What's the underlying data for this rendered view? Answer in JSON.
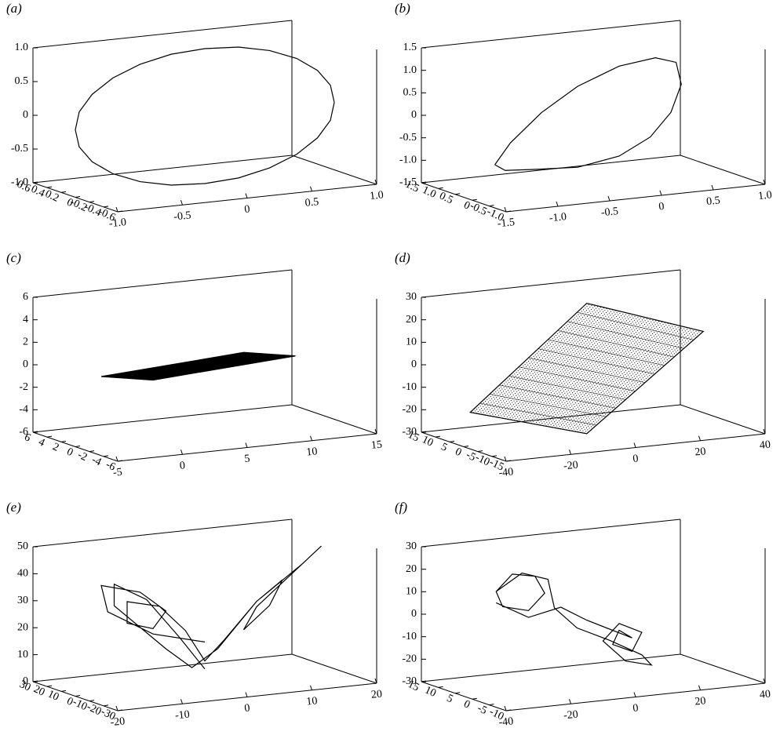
{
  "chart_data": [
    {
      "type": "line3d",
      "label": "(a)",
      "xlim": [
        -1,
        1
      ],
      "xticks": [
        {
          "value": -1,
          "label": "-1.0"
        },
        -0.5,
        0,
        0.5,
        {
          "value": 1,
          "label": "1.0"
        }
      ],
      "ylim": [
        0.6,
        -0.6
      ],
      "yticks": [
        0.6,
        0.4,
        0.2,
        0,
        -0.2,
        -0.4,
        -0.6
      ],
      "zlim": [
        -1,
        1
      ],
      "zticks": [
        {
          "value": 1,
          "label": "1.0"
        },
        0.5,
        0,
        -0.5,
        {
          "value": -1,
          "label": "-1.0"
        }
      ],
      "series": [
        {
          "color": "#000000",
          "x": [
            1,
            0.97,
            0.87,
            0.71,
            0.5,
            0.26,
            0,
            -0.26,
            -0.5,
            -0.71,
            -0.87,
            -0.97,
            -1,
            -0.97,
            -0.87,
            -0.71,
            -0.5,
            -0.26,
            0,
            0.26,
            0.5,
            0.71,
            0.87,
            0.97,
            1
          ],
          "z": [
            0,
            0.26,
            0.5,
            0.71,
            0.87,
            0.97,
            1,
            0.97,
            0.87,
            0.71,
            0.5,
            0.26,
            0,
            -0.26,
            -0.5,
            -0.71,
            -0.87,
            -0.97,
            -1,
            -0.97,
            -0.87,
            -0.71,
            -0.5,
            -0.26,
            0
          ]
        }
      ]
    },
    {
      "type": "line3d",
      "label": "(b)",
      "xlim": [
        -1.5,
        1
      ],
      "xticks": [
        -1.5,
        {
          "value": -1,
          "label": "-1.0"
        },
        -0.5,
        0,
        0.5,
        {
          "value": 1,
          "label": "1.0"
        }
      ],
      "ylim": [
        1.5,
        -1
      ],
      "yticks": [
        1.5,
        {
          "value": 1,
          "label": "1.0"
        },
        0.5,
        0,
        -0.5,
        {
          "value": -1,
          "label": "-1.0"
        }
      ],
      "zlim": [
        -1.5,
        1.5
      ],
      "zticks": [
        1.5,
        {
          "value": 1,
          "label": "1.0"
        },
        0.5,
        0,
        -0.5,
        {
          "value": -1,
          "label": "-1.0"
        },
        -1.5
      ],
      "series": [
        {
          "color": "#000000",
          "x": [
            -1.2,
            -1.05,
            -0.75,
            -0.4,
            0,
            0.35,
            0.55,
            0.6,
            0.5,
            0.3,
            0,
            -0.4,
            -0.8,
            -1.1,
            -1.2
          ],
          "z": [
            -0.85,
            -0.4,
            0.2,
            0.7,
            1.05,
            1.15,
            1.0,
            0.5,
            -0.1,
            -0.6,
            -0.95,
            -1.1,
            -1.05,
            -1.0,
            -0.85
          ]
        }
      ]
    },
    {
      "type": "patch3d",
      "label": "(c)",
      "xlim": [
        -5,
        15
      ],
      "xticks": [
        -5,
        0,
        5,
        10,
        15
      ],
      "ylim": [
        6,
        -6
      ],
      "yticks": [
        6,
        4,
        2,
        0,
        -2,
        -4,
        -6
      ],
      "zlim": [
        -6,
        6
      ],
      "zticks": [
        6,
        4,
        2,
        0,
        -2,
        -4,
        -6
      ],
      "series": [
        {
          "color": "#000000",
          "x": [
            -3,
            1,
            12,
            8
          ],
          "z": [
            0,
            -0.8,
            0,
            0.8
          ]
        }
      ]
    },
    {
      "type": "mesh3d",
      "label": "(d)",
      "xlim": [
        -40,
        40
      ],
      "xticks": [
        -40,
        -20,
        0,
        20,
        40
      ],
      "ylim": [
        15,
        -15
      ],
      "yticks": [
        15,
        10,
        5,
        0,
        -5,
        -10,
        -15
      ],
      "zlim": [
        -30,
        30
      ],
      "zticks": [
        30,
        20,
        10,
        0,
        -10,
        -20,
        -30
      ],
      "series": [
        {
          "color": "#000000",
          "x": [
            -38,
            -2,
            34,
            -2
          ],
          "z": [
            -15,
            -30,
            10,
            28
          ]
        }
      ]
    },
    {
      "type": "line3d",
      "label": "(e)",
      "xlim": [
        -20,
        20
      ],
      "xticks": [
        -20,
        -10,
        0,
        10,
        20
      ],
      "ylim": [
        30,
        -30
      ],
      "yticks": [
        30,
        20,
        10,
        0,
        -10,
        -20,
        -30
      ],
      "zlim": [
        0,
        50
      ],
      "zticks": [
        50,
        40,
        30,
        20,
        10,
        0
      ],
      "series": [
        {
          "color": "#000000",
          "x": [
            0,
            -8,
            -15,
            -16,
            -10,
            -6,
            -8,
            -12,
            -12,
            -7,
            -3,
            0,
            3,
            8,
            15,
            18,
            14,
            8,
            6,
            10,
            12,
            8,
            2,
            -2,
            -6,
            -14,
            -14,
            -9,
            -4,
            0
          ],
          "z": [
            15,
            20,
            30,
            40,
            36,
            28,
            22,
            25,
            33,
            30,
            20,
            8,
            15,
            28,
            40,
            46,
            38,
            26,
            18,
            26,
            35,
            28,
            12,
            6,
            14,
            32,
            40,
            33,
            18,
            5
          ]
        }
      ]
    },
    {
      "type": "line3d",
      "label": "(f)",
      "xlim": [
        -40,
        40
      ],
      "xticks": [
        -40,
        -20,
        0,
        20,
        40
      ],
      "ylim": [
        15,
        -10
      ],
      "yticks": [
        15,
        10,
        5,
        0,
        -5,
        -10
      ],
      "zlim": [
        -30,
        30
      ],
      "zticks": [
        30,
        20,
        10,
        0,
        -10,
        -20,
        -30
      ],
      "series": [
        {
          "color": "#000000",
          "x": [
            -30,
            -25,
            -18,
            -15,
            -20,
            -28,
            -30,
            -22,
            -14,
            -12,
            -5,
            5,
            15,
            18,
            10,
            3,
            8,
            15,
            12,
            6,
            8,
            12,
            -2,
            -10,
            -20,
            -30
          ],
          "z": [
            15,
            22,
            20,
            12,
            5,
            8,
            15,
            22,
            18,
            5,
            -5,
            -12,
            -20,
            -25,
            -22,
            -12,
            -5,
            -10,
            -18,
            -14,
            -8,
            -12,
            -2,
            5,
            2,
            10
          ]
        }
      ]
    }
  ]
}
